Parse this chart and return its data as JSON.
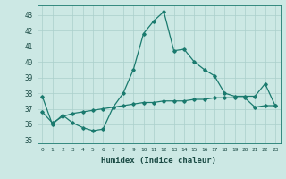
{
  "title": "",
  "xlabel": "Humidex (Indice chaleur)",
  "ylabel": "",
  "xlim": [
    -0.5,
    23.5
  ],
  "ylim": [
    34.8,
    43.6
  ],
  "yticks": [
    35,
    36,
    37,
    38,
    39,
    40,
    41,
    42,
    43
  ],
  "xticks": [
    0,
    1,
    2,
    3,
    4,
    5,
    6,
    7,
    8,
    9,
    10,
    11,
    12,
    13,
    14,
    15,
    16,
    17,
    18,
    19,
    20,
    21,
    22,
    23
  ],
  "xtick_labels": [
    "0",
    "1",
    "2",
    "3",
    "4",
    "5",
    "6",
    "7",
    "8",
    "9",
    "10",
    "11",
    "12",
    "13",
    "14",
    "15",
    "16",
    "17",
    "18",
    "19",
    "20",
    "21",
    "22",
    "23"
  ],
  "line1_x": [
    0,
    1,
    2,
    3,
    4,
    5,
    6,
    7,
    8,
    9,
    10,
    11,
    12,
    13,
    14,
    15,
    16,
    17,
    18,
    19,
    20,
    21,
    22,
    23
  ],
  "line1_y": [
    37.8,
    36.0,
    36.6,
    36.1,
    35.8,
    35.6,
    35.7,
    37.1,
    38.0,
    39.5,
    41.8,
    42.6,
    43.2,
    40.7,
    40.8,
    40.0,
    39.5,
    39.1,
    38.0,
    37.8,
    37.8,
    37.8,
    38.6,
    37.2
  ],
  "line2_x": [
    0,
    1,
    2,
    3,
    4,
    5,
    6,
    7,
    8,
    9,
    10,
    11,
    12,
    13,
    14,
    15,
    16,
    17,
    18,
    19,
    20,
    21,
    22,
    23
  ],
  "line2_y": [
    36.8,
    36.1,
    36.5,
    36.7,
    36.8,
    36.9,
    37.0,
    37.1,
    37.2,
    37.3,
    37.4,
    37.4,
    37.5,
    37.5,
    37.5,
    37.6,
    37.6,
    37.7,
    37.7,
    37.7,
    37.7,
    37.1,
    37.2,
    37.2
  ],
  "line_color": "#1a7a6e",
  "bg_color": "#cce8e4",
  "grid_color": "#aacfcb",
  "marker": "D",
  "marker_size": 1.8,
  "linewidth": 0.9
}
